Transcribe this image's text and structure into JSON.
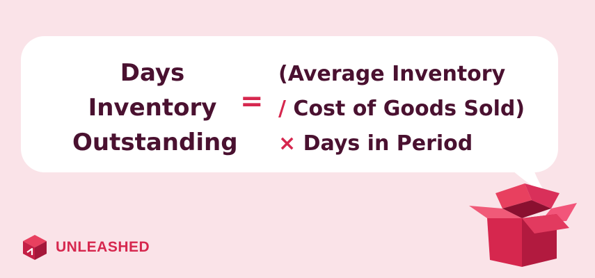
{
  "formula": {
    "lhs_lines": [
      "Days",
      "Inventory",
      "Outstanding"
    ],
    "equals_sign": "=",
    "rhs_line1": "(Average Inventory",
    "rhs_line2_op": "/",
    "rhs_line2_text": "Cost of Goods Sold)",
    "rhs_line3_op": "×",
    "rhs_line3_text": "Days in Period"
  },
  "brand": {
    "name": "UNLEASHED",
    "accent": "#d6274e",
    "text_dark": "#4a1130",
    "background": "#fae3e8"
  },
  "icons": {
    "logo": "unleashed-cube-logo",
    "illustration": "open-gift-box-icon"
  }
}
